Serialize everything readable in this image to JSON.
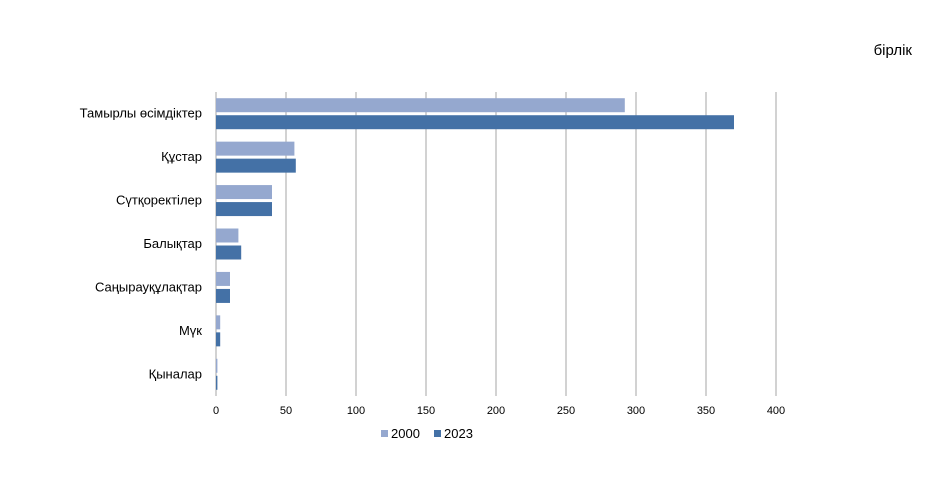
{
  "chart_data": {
    "type": "bar",
    "orientation": "horizontal",
    "unit_label": "бірлік",
    "categories": [
      "Тамырлы өсімдіктер",
      "Құстар",
      "Сүтқоректілер",
      "Балықтар",
      "Саңырауқұлақтар",
      "Мүк",
      "Қыналар"
    ],
    "series": [
      {
        "name": "2000",
        "color": "#95A8CF",
        "values": [
          292,
          56,
          40,
          16,
          10,
          3,
          1
        ]
      },
      {
        "name": "2023",
        "color": "#4471A6",
        "values": [
          370,
          57,
          40,
          18,
          10,
          3,
          1
        ]
      }
    ],
    "xlim": [
      0,
      400
    ],
    "xticks": [
      0,
      50,
      100,
      150,
      200,
      250,
      300,
      350,
      400
    ],
    "grid": true,
    "gridline_color": "#A6A6A6",
    "legend_position": "bottom"
  }
}
